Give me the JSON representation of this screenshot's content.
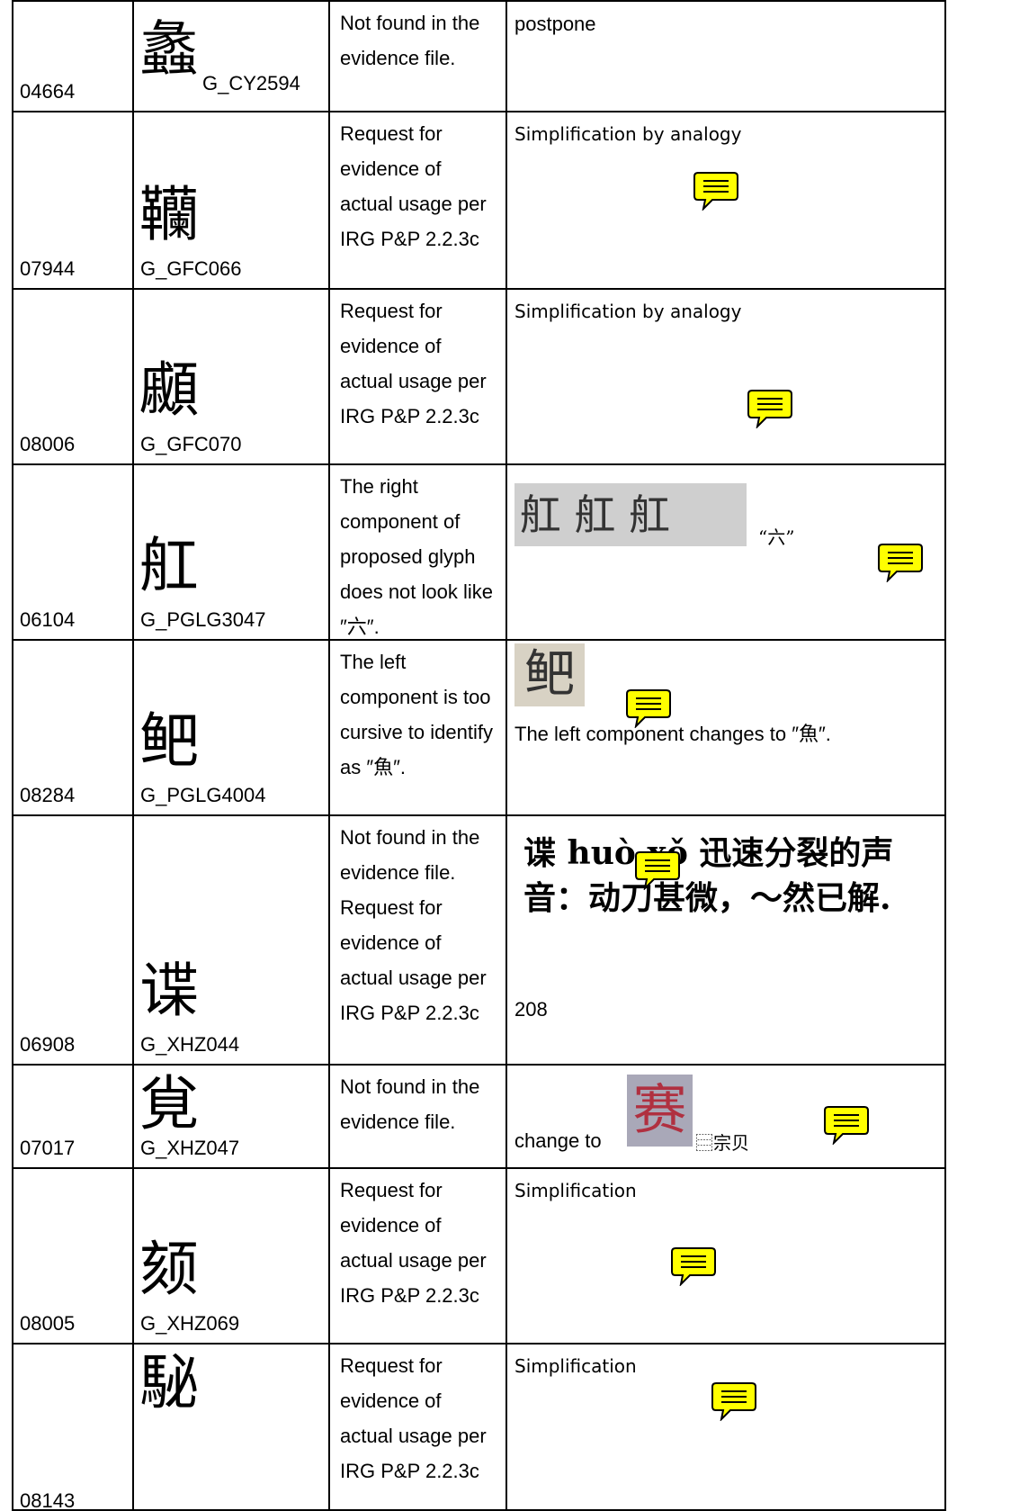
{
  "table": {
    "rows": [
      {
        "id": "04664",
        "glyph": "蠡",
        "source": "G_CY2594",
        "comment": "Not found in the evidence file.",
        "response_text": "postpone"
      },
      {
        "id": "07944",
        "glyph": "韊",
        "source": "G_GFC066",
        "comment": "Request for evidence of actual usage per IRG P&P 2.2.3c",
        "response_text": "Simplification by analogy"
      },
      {
        "id": "08006",
        "glyph": "顣",
        "source": "G_GFC070",
        "comment": "Request for evidence of actual usage per IRG P&P 2.2.3c",
        "response_text": "Simplification by analogy"
      },
      {
        "id": "06104",
        "glyph": "舡",
        "source": "G_PGLG3047",
        "comment": "The right component of proposed glyph does not look like ″六″.",
        "evidence_image": "舡 舡 舡",
        "response_text": "“六”"
      },
      {
        "id": "08284",
        "glyph": "鲃",
        "source": "G_PGLG4004",
        "comment": "The left component is too cursive to identify as ″魚″.",
        "evidence_image": "鲃",
        "response_text": "The left component changes to ″魚″."
      },
      {
        "id": "06908",
        "glyph": "谍",
        "source": "G_XHZ044",
        "comment": "Not found in the evidence file. Request for evidence of actual usage per IRG P&P 2.2.3c",
        "evidence_image": "谍 huò xǒ 迅速分裂的声音：动刀甚微，～然已解.",
        "response_text": "208"
      },
      {
        "id": "07017",
        "glyph": "覍",
        "source": "G_XHZ047",
        "comment": "Not found in the evidence file.",
        "response_text": "change to",
        "evidence_image": "赛",
        "note": "⿳宗贝"
      },
      {
        "id": "08005",
        "glyph": "颏",
        "source": "G_XHZ069",
        "comment": "Request for evidence of actual usage per IRG P&P 2.2.3c",
        "response_text": "Simplification"
      },
      {
        "id": "08143",
        "glyph": "駜",
        "comment": "Request for evidence of actual usage per IRG P&P 2.2.3c",
        "response_text": "Simplification"
      }
    ]
  }
}
